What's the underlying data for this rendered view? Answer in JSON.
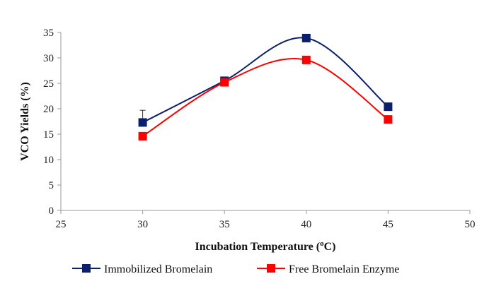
{
  "chart_data": {
    "type": "line",
    "x": [
      30,
      35,
      40,
      45
    ],
    "xlim": [
      25,
      50
    ],
    "ylim": [
      0,
      35
    ],
    "xticks": [
      25,
      30,
      35,
      40,
      45,
      50
    ],
    "yticks": [
      0,
      5,
      10,
      15,
      20,
      25,
      30,
      35
    ],
    "xlabel_main": "Incubation Temperature (",
    "xlabel_sup": "o",
    "xlabel_tail": "C)",
    "ylabel": "VCO Yields (%)",
    "grid": false,
    "smooth": true,
    "legend_position": "bottom",
    "series": [
      {
        "name": "Immobilized Bromelain",
        "color": "#0b1f6b",
        "marker": "square",
        "values": [
          17.3,
          25.5,
          33.9,
          20.4
        ],
        "error": [
          2.4,
          0,
          0,
          0
        ]
      },
      {
        "name": "Free Bromelain Enzyme",
        "color": "#ff0000",
        "marker": "square",
        "values": [
          14.6,
          25.2,
          29.6,
          17.9
        ],
        "error": [
          0,
          0,
          0,
          0
        ]
      }
    ]
  }
}
